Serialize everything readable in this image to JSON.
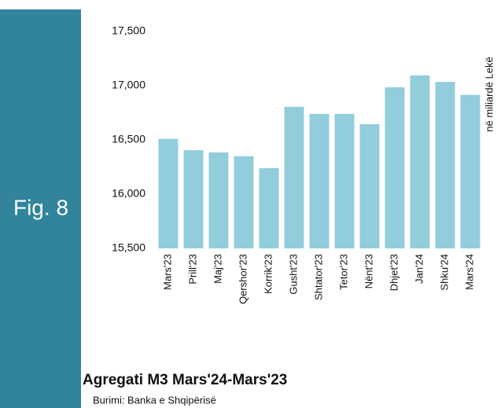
{
  "panel_label": "Fig. 8",
  "chart_data": {
    "type": "bar",
    "title": "Agregati M3 Mars'24-Mars'23",
    "source": "Burimi: Banka e Shqipërisë",
    "y_axis_label": "në miliardë  Lekë",
    "categories": [
      "Mars'23",
      "Prill'23",
      "Maj'23",
      "Qershor'23",
      "Korrik'23",
      "Gusht'23",
      "Shtator'23",
      "Tetor'23",
      "Nënt'23",
      "Dhjet'23",
      "Jan'24",
      "Shku'24",
      "Mars'24"
    ],
    "values": [
      16510,
      16405,
      16385,
      16350,
      16240,
      16805,
      16740,
      16740,
      16645,
      16985,
      17095,
      17035,
      16915
    ],
    "color": "#92cddc",
    "ylim": [
      15500,
      17500
    ],
    "yticks": [
      {
        "value": 15500,
        "label": "15,500"
      },
      {
        "value": 16000,
        "label": "16,000"
      },
      {
        "value": 16500,
        "label": "16,500"
      },
      {
        "value": 17000,
        "label": "17,000"
      },
      {
        "value": 17500,
        "label": "17,500"
      }
    ],
    "grid": false
  }
}
